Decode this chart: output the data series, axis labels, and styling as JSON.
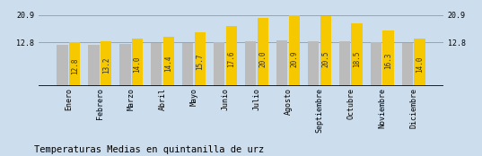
{
  "categories": [
    "Enero",
    "Febrero",
    "Marzo",
    "Abril",
    "Mayo",
    "Junio",
    "Julio",
    "Agosto",
    "Septiembre",
    "Octubre",
    "Noviembre",
    "Diciembre"
  ],
  "values": [
    12.8,
    13.2,
    14.0,
    14.4,
    15.7,
    17.6,
    20.0,
    20.9,
    20.5,
    18.5,
    16.3,
    14.0
  ],
  "gray_values": [
    12.0,
    12.0,
    12.3,
    12.5,
    12.5,
    12.8,
    13.0,
    13.5,
    13.2,
    13.0,
    12.8,
    12.5
  ],
  "bar_color_yellow": "#F5C800",
  "bar_color_gray": "#BBBBBB",
  "background_color": "#CCDDED",
  "title": "Temperaturas Medias en quintanilla de urz",
  "yticks": [
    12.8,
    20.9
  ],
  "ylim": [
    0,
    22.5
  ],
  "value_fontsize": 5.5,
  "label_fontsize": 6.0,
  "title_fontsize": 7.5,
  "grid_color": "#999999",
  "bar_width": 0.35,
  "group_width": 0.75
}
